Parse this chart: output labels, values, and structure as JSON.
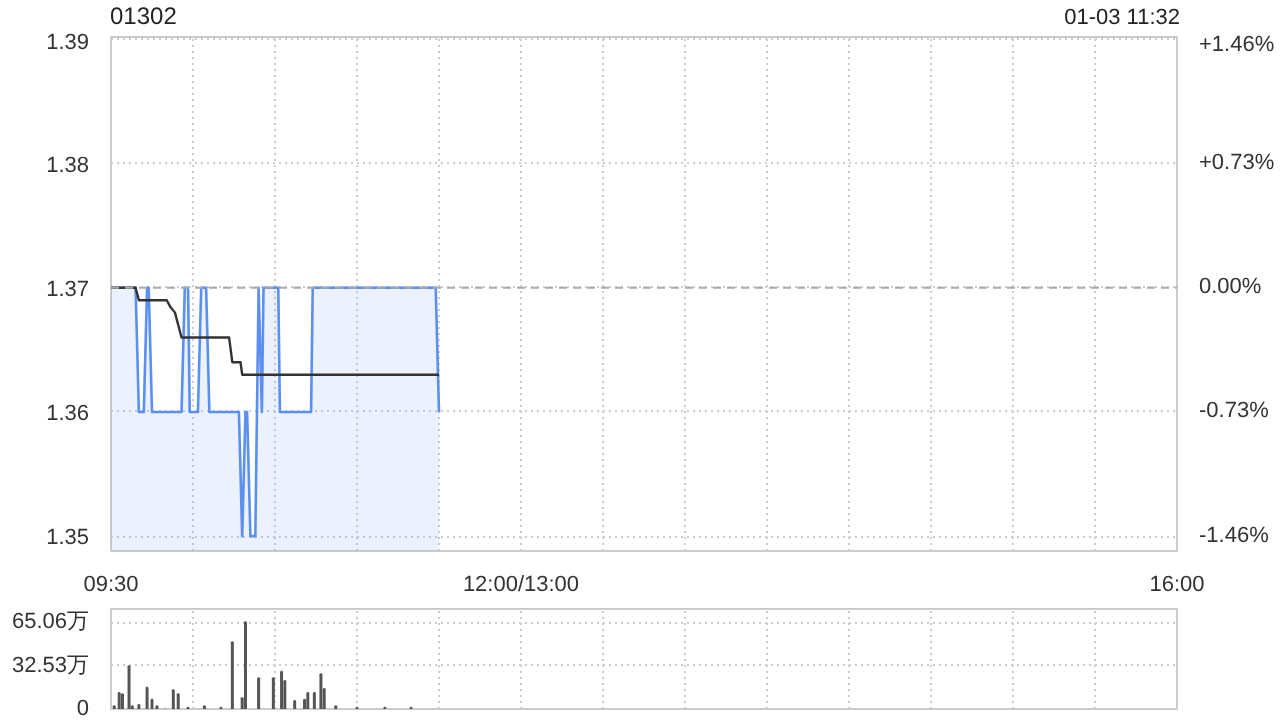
{
  "chart_data": [
    {
      "type": "line",
      "title": "01302",
      "annotations": [
        "01-03 11:32"
      ],
      "xlim": [
        9.5,
        16
      ],
      "xticks": [
        {
          "value": 9.5,
          "label": "09:30"
        },
        {
          "value": 10,
          "label": null
        },
        {
          "value": 10.5,
          "label": null
        },
        {
          "value": 11,
          "label": null
        },
        {
          "value": 11.5,
          "label": null
        },
        {
          "value": 12,
          "label": "12:00/13:00"
        },
        {
          "value": 12.5,
          "label": null
        },
        {
          "value": 13,
          "label": null
        },
        {
          "value": 13.5,
          "label": null
        },
        {
          "value": 14,
          "label": null
        },
        {
          "value": 14.5,
          "label": null
        },
        {
          "value": 15,
          "label": null
        },
        {
          "value": 15.5,
          "label": null
        },
        {
          "value": 16,
          "label": "16:00"
        }
      ],
      "ylim": [
        1.3488,
        1.3902
      ],
      "yticks": [
        1.35,
        1.36,
        1.37,
        1.38,
        1.39
      ],
      "y2lim": [
        -1.55,
        1.47
      ],
      "y2ticks": [
        {
          "value": -1.46,
          "label": "-1.46%"
        },
        {
          "value": -0.73,
          "label": "-0.73%"
        },
        {
          "value": 0,
          "label": "0.00%"
        },
        {
          "value": 0.73,
          "label": "+0.73%"
        },
        {
          "value": 1.46,
          "label": "+1.46%"
        }
      ],
      "grid": true,
      "ref_lines": [
        {
          "axis": "y",
          "value": 1.37,
          "line_style": "dashed",
          "color": "#aaaaaa"
        }
      ],
      "series": [
        {
          "type": "area",
          "color": "#5b8ff0",
          "x": [
            9.5,
            9.65,
            9.67,
            9.7,
            9.72,
            9.73,
            9.75,
            9.93,
            9.95,
            9.97,
            9.98,
            10.03,
            10.05,
            10.08,
            10.1,
            10.28,
            10.3,
            10.32,
            10.33,
            10.35,
            10.38,
            10.4,
            10.42,
            10.43,
            10.52,
            10.53,
            10.72,
            10.73,
            11.48,
            11.5
          ],
          "values": [
            1.37,
            1.37,
            1.36,
            1.36,
            1.37,
            1.37,
            1.36,
            1.36,
            1.37,
            1.37,
            1.36,
            1.36,
            1.37,
            1.37,
            1.36,
            1.36,
            1.35,
            1.36,
            1.36,
            1.35,
            1.35,
            1.37,
            1.36,
            1.37,
            1.37,
            1.36,
            1.36,
            1.37,
            1.37,
            1.36
          ]
        },
        {
          "type": "line",
          "color": "#333333",
          "x": [
            9.5,
            9.65,
            9.67,
            9.84,
            9.86,
            9.89,
            9.91,
            9.93,
            10.22,
            10.24,
            10.29,
            10.3,
            11.5
          ],
          "values": [
            1.37,
            1.37,
            1.369,
            1.369,
            1.3685,
            1.368,
            1.367,
            1.366,
            1.366,
            1.364,
            1.364,
            1.363,
            1.363
          ]
        }
      ]
    },
    {
      "type": "bar",
      "tick_labels": "y",
      "grid": true,
      "xlim": [
        9.5,
        16
      ],
      "xticks": [
        {
          "value": 9.5,
          "label": null
        },
        {
          "value": 10,
          "label": null
        },
        {
          "value": 10.5,
          "label": null
        },
        {
          "value": 11,
          "label": null
        },
        {
          "value": 11.5,
          "label": null
        },
        {
          "value": 12,
          "label": null
        },
        {
          "value": 12.5,
          "label": null
        },
        {
          "value": 13,
          "label": null
        },
        {
          "value": 13.5,
          "label": null
        },
        {
          "value": 14,
          "label": null
        },
        {
          "value": 14.5,
          "label": null
        },
        {
          "value": 15,
          "label": null
        },
        {
          "value": 15.5,
          "label": null
        },
        {
          "value": 16,
          "label": null
        }
      ],
      "ylim": [
        0,
        75
      ],
      "yticks": [
        {
          "value": 0,
          "label": "0"
        },
        {
          "value": 32.53,
          "label": "32.53万"
        },
        {
          "value": 65.06,
          "label": "65.06万"
        }
      ],
      "color": "#555555",
      "x": [
        9.52,
        9.55,
        9.57,
        9.61,
        9.63,
        9.67,
        9.72,
        9.75,
        9.78,
        9.83,
        9.88,
        9.91,
        9.97,
        10.07,
        10.17,
        10.24,
        10.3,
        10.32,
        10.4,
        10.49,
        10.54,
        10.56,
        10.62,
        10.68,
        10.7,
        10.74,
        10.78,
        10.8,
        10.87,
        11,
        11.17,
        11.33
      ],
      "values": [
        2,
        12,
        11,
        32,
        2,
        3,
        16,
        7,
        2,
        0,
        14,
        11,
        1,
        2,
        1,
        50,
        8,
        65,
        23,
        23,
        28,
        21,
        6,
        7,
        12,
        12,
        26,
        15,
        2,
        1,
        1,
        1
      ]
    }
  ]
}
